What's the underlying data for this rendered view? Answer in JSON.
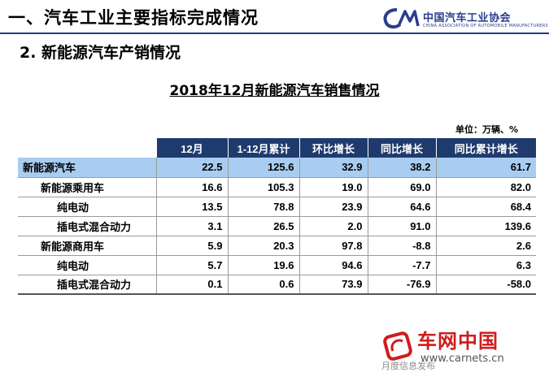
{
  "header": {
    "title": "一、汽车工业主要指标完成情况",
    "logo_cn": "中国汽车工业协会",
    "logo_en": "CHINA ASSOCIATION OF AUTOMOBILE MANUFACTURERS",
    "accent_color": "#1f3f7a"
  },
  "subtitle": "2. 新能源汽车产销情况",
  "table": {
    "title": "2018年12月新能源汽车销售情况",
    "unit": "单位：万辆、%",
    "columns": [
      "12月",
      "1-12月累计",
      "环比增长",
      "同比增长",
      "同比累计增长"
    ],
    "rows": [
      {
        "name": "新能源汽车",
        "values": [
          "22.5",
          "125.6",
          "32.9",
          "38.2",
          "61.7"
        ]
      },
      {
        "name": "新能源乘用车",
        "values": [
          "16.6",
          "105.3",
          "19.0",
          "69.0",
          "82.0"
        ]
      },
      {
        "name": "纯电动",
        "values": [
          "13.5",
          "78.8",
          "23.9",
          "64.6",
          "68.4"
        ]
      },
      {
        "name": "插电式混合动力",
        "values": [
          "3.1",
          "26.5",
          "2.0",
          "91.0",
          "139.6"
        ]
      },
      {
        "name": "新能源商用车",
        "values": [
          "5.9",
          "20.3",
          "97.8",
          "-8.8",
          "2.6"
        ]
      },
      {
        "name": "纯电动",
        "values": [
          "5.7",
          "19.6",
          "94.6",
          "-7.7",
          "6.3"
        ]
      },
      {
        "name": "插电式混合动力",
        "values": [
          "0.1",
          "0.6",
          "73.9",
          "-76.9",
          "-58.0"
        ]
      }
    ],
    "header_color": "#1f3b6e",
    "highlight_color": "#a9cdf0"
  },
  "watermark": {
    "brand": "车网中国",
    "url": "www.carnets.cn",
    "faded_text": "月度信息发布",
    "brand_color": "#d01b1b"
  }
}
